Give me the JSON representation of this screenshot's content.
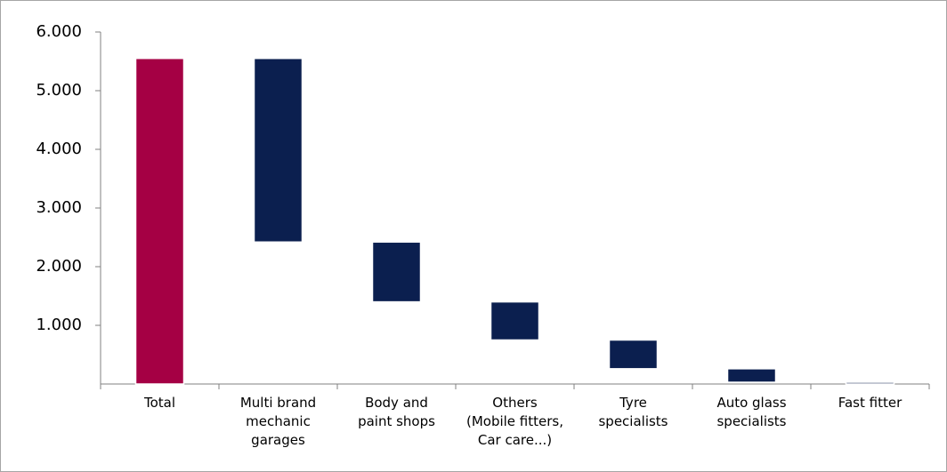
{
  "chart_data": {
    "type": "waterfall",
    "categories": [
      "Total",
      "Multi brand\nmechanic\ngarages",
      "Body and\npaint shops",
      "Others\n(Mobile fitters,\nCar care...)",
      "Tyre\nspecialists",
      "Auto glass\nspecialists",
      "Fast fitter"
    ],
    "values": [
      5550,
      -3130,
      -1020,
      -650,
      -490,
      -230,
      -30
    ],
    "total_index": 0,
    "total_color": "#a50044",
    "color": "#0b1f4f",
    "ylim": [
      0,
      6000
    ],
    "yticks": [
      {
        "value": 1000,
        "label": "1.000"
      },
      {
        "value": 2000,
        "label": "2.000"
      },
      {
        "value": 3000,
        "label": "3.000"
      },
      {
        "value": 4000,
        "label": "4.000"
      },
      {
        "value": 5000,
        "label": "5.000"
      },
      {
        "value": 6000,
        "label": "6.000"
      }
    ],
    "grid": false
  }
}
